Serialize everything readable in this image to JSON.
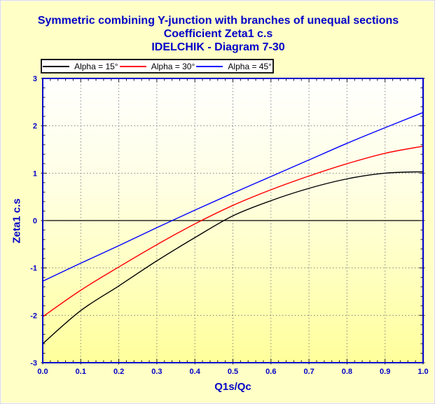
{
  "title": {
    "line1": "Symmetric combining Y-junction with branches of unequal sections",
    "line2": "Coefficient Zeta1 c.s",
    "line3": "IDELCHIK - Diagram 7-30"
  },
  "colors": {
    "page_bg": "#FFFFC6",
    "plot_bg_top": "#FFFFFE",
    "plot_bg_mid": "#FFFFE4",
    "plot_bg_bottom": "#FFFF9C",
    "frame": "#0000CC",
    "grid": "#737373",
    "zero_line": "#000000",
    "tick": "#1A1A1A",
    "title_text": "#0000C8",
    "tick_label_text": "#0000C8",
    "axis_title_text": "#0000C8",
    "legend_bg": "#FFFFFF",
    "legend_border": "#1A1A1A",
    "legend_text": "#000000"
  },
  "chart_data": {
    "type": "line",
    "title": "Symmetric combining Y-junction with branches of unequal sections — Coefficient Zeta1 c.s — IDELCHIK - Diagram 7-30",
    "xlabel": "Q1s/Qc",
    "ylabel": "Zeta1 c.s",
    "xlim": [
      0.0,
      1.0
    ],
    "ylim": [
      -3,
      3
    ],
    "grid": "dotted",
    "legend_position": "top",
    "x": [
      0.0,
      0.1,
      0.2,
      0.3,
      0.4,
      0.5,
      0.6,
      0.7,
      0.8,
      0.9,
      1.0
    ],
    "series": [
      {
        "name": "Alpha = 15°",
        "color": "#000000",
        "values": [
          -2.6,
          -1.9,
          -1.38,
          -0.85,
          -0.36,
          0.1,
          0.42,
          0.68,
          0.88,
          1.0,
          1.03
        ]
      },
      {
        "name": "Alpha = 30°",
        "color": "#FF0000",
        "values": [
          -2.03,
          -1.47,
          -0.98,
          -0.51,
          -0.07,
          0.32,
          0.65,
          0.94,
          1.2,
          1.42,
          1.57
        ]
      },
      {
        "name": "Alpha = 45°",
        "color": "#0000FF",
        "values": [
          -1.28,
          -0.9,
          -0.53,
          -0.15,
          0.22,
          0.58,
          0.93,
          1.28,
          1.63,
          1.96,
          2.28
        ]
      }
    ],
    "x_ticks": {
      "values": [
        0.0,
        0.1,
        0.2,
        0.3,
        0.4,
        0.5,
        0.6,
        0.7,
        0.8,
        0.9,
        1.0
      ],
      "labels": [
        "0.0",
        "0.1",
        "0.2",
        "0.3",
        "0.4",
        "0.5",
        "0.6",
        "0.7",
        "0.8",
        "0.9",
        "1.0"
      ],
      "minor_step": 0.02
    },
    "y_ticks": {
      "values": [
        3,
        2,
        1,
        0,
        -1,
        -2,
        -3
      ],
      "labels": [
        "3",
        "2",
        "1",
        "0",
        "-1",
        "-2",
        "-3"
      ],
      "minor_step": 0.2
    },
    "x_gridlines": [
      0.1,
      0.2,
      0.3,
      0.4,
      0.5,
      0.6,
      0.7,
      0.8,
      0.9
    ],
    "y_gridlines": [
      -2,
      -1,
      1,
      2
    ],
    "zero_line": 0
  }
}
